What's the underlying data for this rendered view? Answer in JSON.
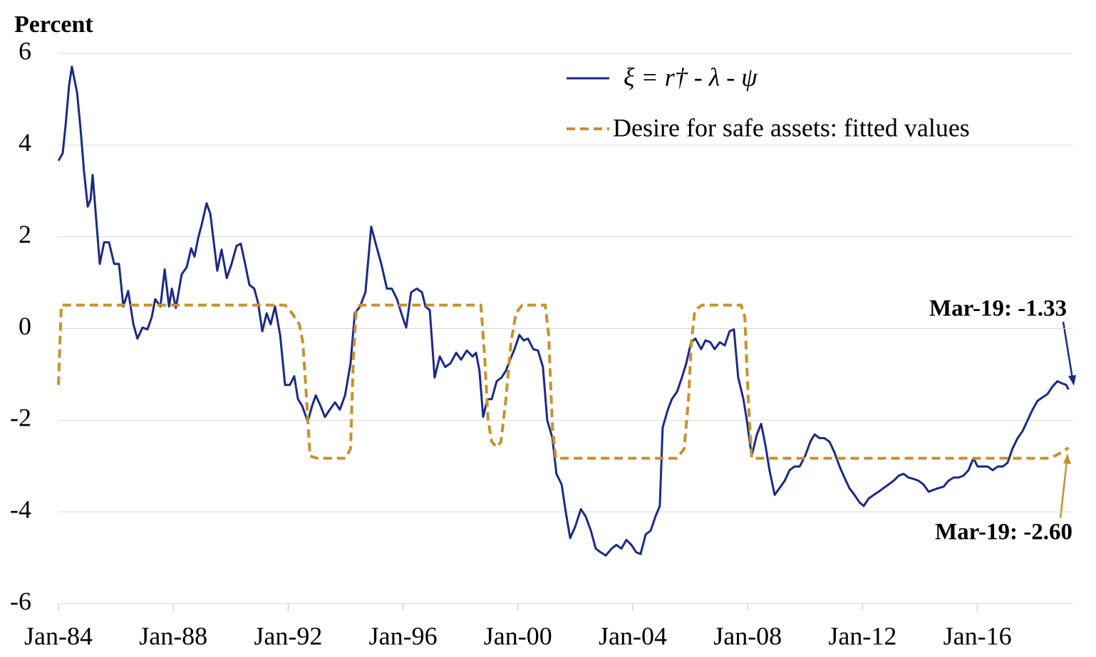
{
  "chart_data": {
    "type": "line",
    "title": "Percent",
    "xlim": [
      1984,
      2019.31
    ],
    "ylim": [
      -6,
      6
    ],
    "xticks": [
      {
        "value": 1984,
        "label": "Jan-84"
      },
      {
        "value": 1988,
        "label": "Jan-88"
      },
      {
        "value": 1992,
        "label": "Jan-92"
      },
      {
        "value": 1996,
        "label": "Jan-96"
      },
      {
        "value": 2000,
        "label": "Jan-00"
      },
      {
        "value": 2004,
        "label": "Jan-04"
      },
      {
        "value": 2008,
        "label": "Jan-08"
      },
      {
        "value": 2012,
        "label": "Jan-12"
      },
      {
        "value": 2016,
        "label": "Jan-16"
      }
    ],
    "yticks": [
      6,
      4,
      2,
      0,
      -2,
      -4,
      -6
    ],
    "grid": true,
    "legend": "upper right",
    "series": [
      {
        "name": "ξ = r† - λ - ψ",
        "color": "#1b2a85",
        "style": "solid",
        "x": [
          1984.0,
          1984.15,
          1984.25,
          1984.37,
          1984.47,
          1984.65,
          1984.77,
          1984.89,
          1985.02,
          1985.12,
          1985.19,
          1985.32,
          1985.44,
          1985.59,
          1985.76,
          1985.94,
          1986.11,
          1986.26,
          1986.43,
          1986.61,
          1986.75,
          1986.93,
          1987.1,
          1987.25,
          1987.37,
          1987.55,
          1987.7,
          1987.85,
          1987.95,
          1988.09,
          1988.29,
          1988.47,
          1988.62,
          1988.74,
          1988.86,
          1988.99,
          1989.16,
          1989.29,
          1989.41,
          1989.53,
          1989.68,
          1989.86,
          1990.03,
          1990.2,
          1990.35,
          1990.5,
          1990.65,
          1990.82,
          1990.95,
          1991.1,
          1991.25,
          1991.39,
          1991.54,
          1991.72,
          1991.89,
          1992.06,
          1992.21,
          1992.34,
          1992.49,
          1992.68,
          1992.83,
          1992.96,
          1993.13,
          1993.28,
          1993.45,
          1993.63,
          1993.8,
          1993.98,
          1994.17,
          1994.32,
          1994.5,
          1994.69,
          1994.89,
          1995.07,
          1995.24,
          1995.44,
          1995.61,
          1995.79,
          1995.94,
          1996.11,
          1996.28,
          1996.48,
          1996.66,
          1996.78,
          1996.93,
          1997.1,
          1997.28,
          1997.47,
          1997.65,
          1997.85,
          1998.02,
          1998.22,
          1998.42,
          1998.54,
          1998.66,
          1998.79,
          1998.94,
          1999.09,
          1999.26,
          1999.43,
          1999.58,
          1999.73,
          1999.88,
          2000.05,
          2000.2,
          2000.35,
          2000.53,
          2000.7,
          2000.87,
          2001.02,
          2001.2,
          2001.34,
          2001.52,
          2001.67,
          2001.82,
          2001.99,
          2002.19,
          2002.36,
          2002.54,
          2002.71,
          2002.88,
          2003.06,
          2003.26,
          2003.43,
          2003.6,
          2003.78,
          2003.95,
          2004.12,
          2004.27,
          2004.45,
          2004.62,
          2004.79,
          2004.94,
          2005.04,
          2005.22,
          2005.36,
          2005.54,
          2005.71,
          2005.86,
          2006.03,
          2006.18,
          2006.38,
          2006.53,
          2006.7,
          2006.85,
          2007.03,
          2007.2,
          2007.37,
          2007.52,
          2007.67,
          2007.85,
          2007.97,
          2008.14,
          2008.32,
          2008.47,
          2008.62,
          2008.76,
          2008.94,
          2009.11,
          2009.29,
          2009.46,
          2009.63,
          2009.81,
          2010.0,
          2010.18,
          2010.33,
          2010.5,
          2010.67,
          2010.85,
          2011.02,
          2011.2,
          2011.37,
          2011.54,
          2011.72,
          2011.89,
          2012.04,
          2012.21,
          2012.39,
          2012.56,
          2012.73,
          2012.91,
          2013.08,
          2013.26,
          2013.43,
          2013.6,
          2013.78,
          2013.95,
          2014.12,
          2014.3,
          2014.47,
          2014.65,
          2014.82,
          2014.99,
          2015.17,
          2015.34,
          2015.51,
          2015.69,
          2015.86,
          2016.01,
          2016.18,
          2016.36,
          2016.53,
          2016.71,
          2016.88,
          2017.05,
          2017.22,
          2017.4,
          2017.57,
          2017.75,
          2017.92,
          2018.09,
          2018.27,
          2018.44,
          2018.62,
          2018.79,
          2018.96,
          2019.09,
          2019.17
        ],
        "values": [
          3.66,
          3.82,
          4.44,
          5.3,
          5.71,
          5.14,
          4.36,
          3.43,
          2.66,
          2.81,
          3.35,
          2.34,
          1.41,
          1.88,
          1.88,
          1.41,
          1.41,
          0.48,
          0.82,
          0.09,
          -0.22,
          0.02,
          -0.02,
          0.25,
          0.64,
          0.48,
          1.29,
          0.48,
          0.87,
          0.45,
          1.18,
          1.34,
          1.75,
          1.57,
          1.96,
          2.27,
          2.73,
          2.5,
          1.88,
          1.26,
          1.72,
          1.1,
          1.41,
          1.8,
          1.85,
          1.41,
          0.95,
          0.87,
          0.56,
          -0.06,
          0.33,
          0.09,
          0.48,
          -0.14,
          -1.23,
          -1.23,
          -1.04,
          -1.54,
          -1.69,
          -2.03,
          -1.69,
          -1.46,
          -1.69,
          -1.93,
          -1.77,
          -1.61,
          -1.77,
          -1.46,
          -0.76,
          0.33,
          0.48,
          0.79,
          2.22,
          1.8,
          1.41,
          0.87,
          0.87,
          0.64,
          0.33,
          0.02,
          0.79,
          0.87,
          0.79,
          0.48,
          0.4,
          -1.07,
          -0.61,
          -0.84,
          -0.76,
          -0.53,
          -0.68,
          -0.48,
          -0.61,
          -0.53,
          -0.92,
          -1.93,
          -1.54,
          -1.54,
          -1.15,
          -1.07,
          -0.92,
          -0.68,
          -0.45,
          -0.14,
          -0.26,
          -0.22,
          -0.45,
          -0.48,
          -0.84,
          -2.0,
          -2.39,
          -3.17,
          -3.4,
          -4.02,
          -4.57,
          -4.33,
          -3.94,
          -4.1,
          -4.41,
          -4.8,
          -4.88,
          -4.95,
          -4.8,
          -4.72,
          -4.8,
          -4.61,
          -4.72,
          -4.88,
          -4.92,
          -4.49,
          -4.41,
          -4.1,
          -3.87,
          -2.16,
          -1.77,
          -1.54,
          -1.38,
          -1.07,
          -0.76,
          -0.3,
          -0.22,
          -0.45,
          -0.26,
          -0.3,
          -0.45,
          -0.3,
          -0.37,
          -0.06,
          -0.02,
          -1.07,
          -1.54,
          -2.0,
          -2.78,
          -2.31,
          -2.08,
          -2.55,
          -3.09,
          -3.63,
          -3.48,
          -3.32,
          -3.09,
          -3.01,
          -3.01,
          -2.78,
          -2.47,
          -2.31,
          -2.39,
          -2.39,
          -2.47,
          -2.7,
          -3.01,
          -3.25,
          -3.48,
          -3.63,
          -3.79,
          -3.87,
          -3.71,
          -3.63,
          -3.56,
          -3.48,
          -3.4,
          -3.32,
          -3.21,
          -3.17,
          -3.25,
          -3.28,
          -3.32,
          -3.4,
          -3.56,
          -3.52,
          -3.48,
          -3.45,
          -3.32,
          -3.25,
          -3.25,
          -3.21,
          -3.09,
          -2.83,
          -3.01,
          -3.01,
          -3.01,
          -3.09,
          -3.01,
          -3.01,
          -2.93,
          -2.62,
          -2.39,
          -2.24,
          -2.0,
          -1.77,
          -1.58,
          -1.5,
          -1.43,
          -1.26,
          -1.15,
          -1.2,
          -1.23,
          -1.33
        ]
      },
      {
        "name": "Desire for safe assets: fitted values",
        "color": "#c8912e",
        "style": "dashed",
        "x": [
          1984.0,
          1984.1,
          1991.89,
          1992.14,
          1992.39,
          1992.51,
          1992.64,
          1992.76,
          1993.01,
          1994.0,
          1994.17,
          1994.27,
          1994.37,
          1994.5,
          1998.71,
          1998.84,
          1998.96,
          1999.09,
          1999.26,
          1999.41,
          1999.58,
          1999.76,
          1999.93,
          2000.15,
          2000.95,
          2001.07,
          2001.2,
          2001.32,
          2005.54,
          2005.79,
          2005.94,
          2006.04,
          2006.16,
          2006.41,
          2007.77,
          2007.9,
          2008.02,
          2008.14,
          2018.44,
          2018.69,
          2018.94,
          2019.17
        ],
        "values": [
          -1.23,
          0.51,
          0.51,
          0.33,
          0.09,
          -0.3,
          -1.54,
          -2.78,
          -2.83,
          -2.83,
          -2.62,
          -0.61,
          0.4,
          0.51,
          0.51,
          -0.61,
          -2.0,
          -2.47,
          -2.59,
          -2.47,
          -1.54,
          -0.3,
          0.33,
          0.51,
          0.51,
          -0.14,
          -2.16,
          -2.83,
          -2.83,
          -2.62,
          -1.54,
          -0.3,
          0.4,
          0.51,
          0.51,
          0.25,
          -1.54,
          -2.83,
          -2.83,
          -2.78,
          -2.7,
          -2.6
        ]
      }
    ],
    "annotations": [
      {
        "text": "Mar-19: -1.33",
        "color": "#1b2a85"
      },
      {
        "text": "Mar-19: -2.60",
        "color": "#c8912e"
      }
    ]
  }
}
